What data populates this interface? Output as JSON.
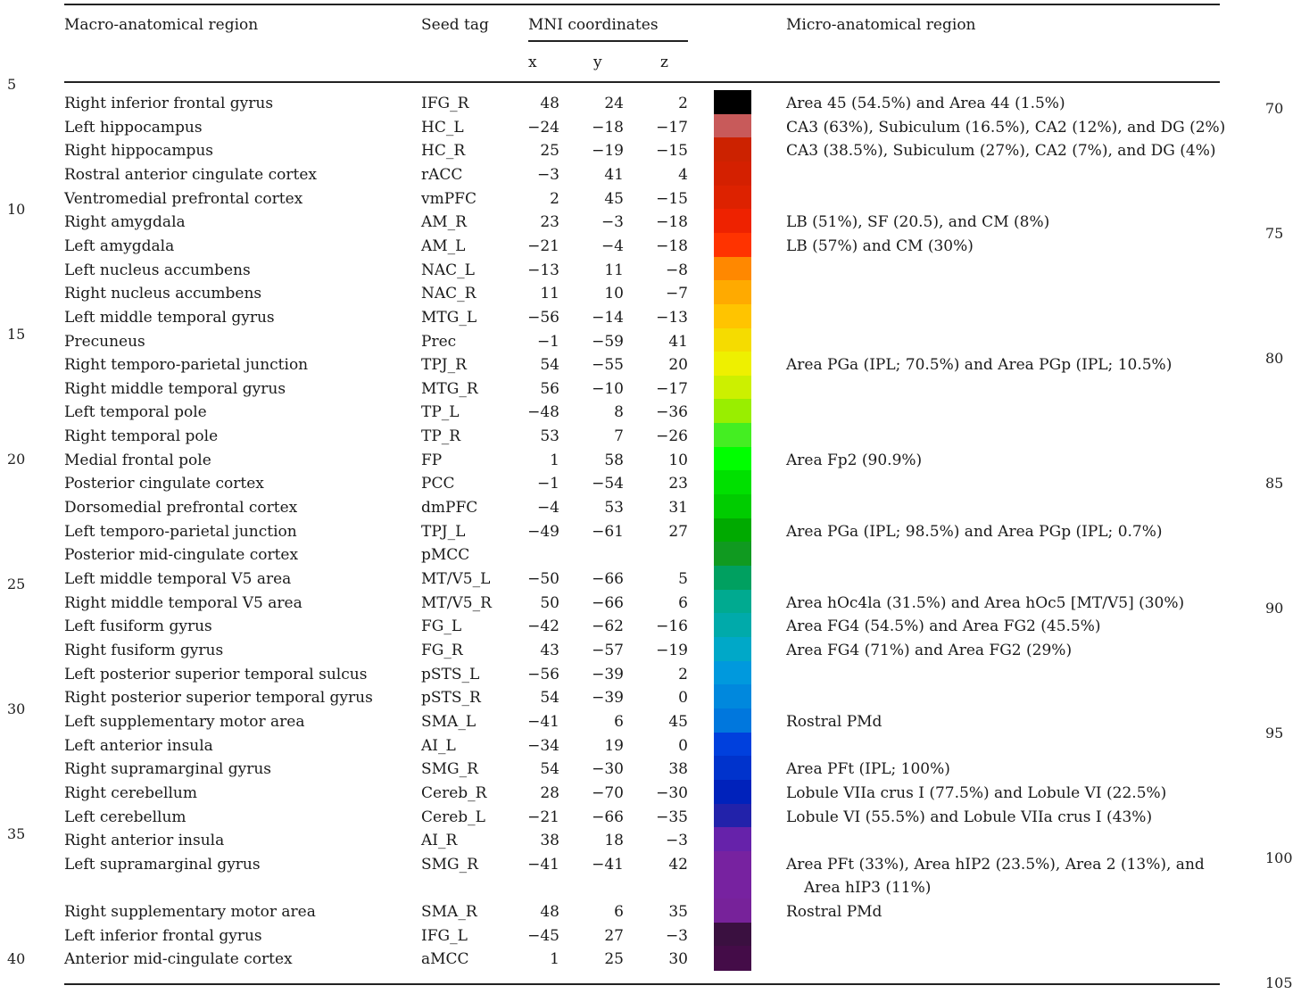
{
  "headers": {
    "macro": "Macro-anatomical region",
    "seed": "Seed tag",
    "mni": "MNI coordinates",
    "x": "x",
    "y": "y",
    "z": "z",
    "micro": "Micro-anatomical region"
  },
  "line_numbers_left": [
    "5",
    "10",
    "15",
    "20",
    "25",
    "30",
    "35",
    "40"
  ],
  "line_numbers_right": [
    "70",
    "75",
    "80",
    "85",
    "90",
    "95",
    "100",
    "105"
  ],
  "rows": [
    {
      "macro": "Right inferior frontal gyrus",
      "seed": "IFG_R",
      "x": "48",
      "y": "24",
      "z": "2",
      "color": "#000000",
      "micro": "Area 45 (54.5%) and Area 44 (1.5%)",
      "micro2": ""
    },
    {
      "macro": "Left hippocampus",
      "seed": "HC_L",
      "x": "−24",
      "y": "−18",
      "z": "−17",
      "color": "#c85a5a",
      "micro": "CA3 (63%), Subiculum (16.5%), CA2 (12%), and DG (2%)",
      "micro2": ""
    },
    {
      "macro": "Right hippocampus",
      "seed": "HC_R",
      "x": "25",
      "y": "−19",
      "z": "−15",
      "color": "#cc2200",
      "micro": "CA3 (38.5%), Subiculum (27%), CA2 (7%), and DG (4%)",
      "micro2": ""
    },
    {
      "macro": "Rostral anterior cingulate cortex",
      "seed": "rACC",
      "x": "−3",
      "y": "41",
      "z": "4",
      "color": "#d42000",
      "micro": "",
      "micro2": ""
    },
    {
      "macro": "Ventromedial prefrontal cortex",
      "seed": "vmPFC",
      "x": "2",
      "y": "45",
      "z": "−15",
      "color": "#dd2200",
      "micro": "",
      "micro2": ""
    },
    {
      "macro": "Right amygdala",
      "seed": "AM_R",
      "x": "23",
      "y": "−3",
      "z": "−18",
      "color": "#ee2200",
      "micro": "LB (51%), SF (20.5), and CM (8%)",
      "micro2": ""
    },
    {
      "macro": "Left amygdala",
      "seed": "AM_L",
      "x": "−21",
      "y": "−4",
      "z": "−18",
      "color": "#ff3300",
      "micro": "LB (57%) and CM (30%)",
      "micro2": ""
    },
    {
      "macro": "Left nucleus accumbens",
      "seed": "NAC_L",
      "x": "−13",
      "y": "11",
      "z": "−8",
      "color": "#ff8800",
      "micro": "",
      "micro2": ""
    },
    {
      "macro": "Right nucleus accumbens",
      "seed": "NAC_R",
      "x": "11",
      "y": "10",
      "z": "−7",
      "color": "#ffaa00",
      "micro": "",
      "micro2": ""
    },
    {
      "macro": "Left middle temporal gyrus",
      "seed": "MTG_L",
      "x": "−56",
      "y": "−14",
      "z": "−13",
      "color": "#ffc400",
      "micro": "",
      "micro2": ""
    },
    {
      "macro": "Precuneus",
      "seed": "Prec",
      "x": "−1",
      "y": "−59",
      "z": "41",
      "color": "#f5dc00",
      "micro": "",
      "micro2": ""
    },
    {
      "macro": "Right temporo-parietal junction",
      "seed": "TPJ_R",
      "x": "54",
      "y": "−55",
      "z": "20",
      "color": "#eef000",
      "micro": "Area PGa (IPL; 70.5%) and Area PGp (IPL; 10.5%)",
      "micro2": ""
    },
    {
      "macro": "Right middle temporal gyrus",
      "seed": "MTG_R",
      "x": "56",
      "y": "−10",
      "z": "−17",
      "color": "#ccf000",
      "micro": "",
      "micro2": ""
    },
    {
      "macro": "Left temporal pole",
      "seed": "TP_L",
      "x": "−48",
      "y": "8",
      "z": "−36",
      "color": "#99ee00",
      "micro": "",
      "micro2": ""
    },
    {
      "macro": "Right temporal pole",
      "seed": "TP_R",
      "x": "53",
      "y": "7",
      "z": "−26",
      "color": "#44ee22",
      "micro": "",
      "micro2": ""
    },
    {
      "macro": "Medial frontal pole",
      "seed": "FP",
      "x": "1",
      "y": "58",
      "z": "10",
      "color": "#00ff00",
      "micro": "Area Fp2 (90.9%)",
      "micro2": ""
    },
    {
      "macro": "Posterior cingulate cortex",
      "seed": "PCC",
      "x": "−1",
      "y": "−54",
      "z": "23",
      "color": "#00e000",
      "micro": "",
      "micro2": ""
    },
    {
      "macro": "Dorsomedial prefrontal cortex",
      "seed": "dmPFC",
      "x": "−4",
      "y": "53",
      "z": "31",
      "color": "#00cc00",
      "micro": "",
      "micro2": ""
    },
    {
      "macro": "Left temporo-parietal junction",
      "seed": "TPJ_L",
      "x": "−49",
      "y": "−61",
      "z": "27",
      "color": "#00aa00",
      "micro": "Area PGa (IPL; 98.5%) and Area PGp (IPL; 0.7%)",
      "micro2": ""
    },
    {
      "macro": "Posterior mid-cingulate cortex",
      "seed": "pMCC",
      "x": "",
      "y": "",
      "z": "",
      "color": "#109a20",
      "micro": "",
      "micro2": ""
    },
    {
      "macro": "Left middle temporal V5 area",
      "seed": "MT/V5_L",
      "x": "−50",
      "y": "−66",
      "z": "5",
      "color": "#00a060",
      "micro": "",
      "micro2": ""
    },
    {
      "macro": "Right middle temporal V5 area",
      "seed": "MT/V5_R",
      "x": "50",
      "y": "−66",
      "z": "6",
      "color": "#00aa90",
      "micro": "Area hOc4la (31.5%) and Area hOc5 [MT/V5] (30%)",
      "micro2": ""
    },
    {
      "macro": "Left fusiform gyrus",
      "seed": "FG_L",
      "x": "−42",
      "y": "−62",
      "z": "−16",
      "color": "#00aaaa",
      "micro": "Area FG4 (54.5%) and Area FG2 (45.5%)",
      "micro2": ""
    },
    {
      "macro": "Right fusiform gyrus",
      "seed": "FG_R",
      "x": "43",
      "y": "−57",
      "z": "−19",
      "color": "#00a8c8",
      "micro": "Area FG4 (71%) and Area FG2 (29%)",
      "micro2": ""
    },
    {
      "macro": "Left posterior superior temporal sulcus",
      "seed": "pSTS_L",
      "x": "−56",
      "y": "−39",
      "z": "2",
      "color": "#0099dd",
      "micro": "",
      "micro2": ""
    },
    {
      "macro": "Right posterior superior temporal gyrus",
      "seed": "pSTS_R",
      "x": "54",
      "y": "−39",
      "z": "0",
      "color": "#0088dd",
      "micro": "",
      "micro2": ""
    },
    {
      "macro": "Left supplementary motor area",
      "seed": "SMA_L",
      "x": "−41",
      "y": "6",
      "z": "45",
      "color": "#0077dd",
      "micro": "Rostral PMd",
      "micro2": ""
    },
    {
      "macro": "Left anterior insula",
      "seed": "AI_L",
      "x": "−34",
      "y": "19",
      "z": "0",
      "color": "#0040dd",
      "micro": "",
      "micro2": ""
    },
    {
      "macro": "Right supramarginal gyrus",
      "seed": "SMG_R",
      "x": "54",
      "y": "−30",
      "z": "38",
      "color": "#0033cc",
      "micro": "Area PFt (IPL; 100%)",
      "micro2": ""
    },
    {
      "macro": "Right cerebellum",
      "seed": "Cereb_R",
      "x": "28",
      "y": "−70",
      "z": "−30",
      "color": "#0022bb",
      "micro": "Lobule VIIa crus I (77.5%) and Lobule VI (22.5%)",
      "micro2": ""
    },
    {
      "macro": "Left cerebellum",
      "seed": "Cereb_L",
      "x": "−21",
      "y": "−66",
      "z": "−35",
      "color": "#2222aa",
      "micro": "Lobule VI (55.5%) and Lobule VIIa crus I (43%)",
      "micro2": ""
    },
    {
      "macro": "Right anterior insula",
      "seed": "AI_R",
      "x": "38",
      "y": "18",
      "z": "−3",
      "color": "#6622aa",
      "micro": "",
      "micro2": ""
    },
    {
      "macro": "Left supramarginal gyrus",
      "seed": "SMG_R",
      "x": "−41",
      "y": "−41",
      "z": "42",
      "color": "#7722a0",
      "micro": "Area PFt (33%), Area hIP2 (23.5%), Area 2 (13%), and",
      "micro2": "Area hIP3 (11%)"
    },
    {
      "macro": "Right supplementary motor area",
      "seed": "SMA_R",
      "x": "48",
      "y": "6",
      "z": "35",
      "color": "#77229a",
      "micro": "Rostral PMd",
      "micro2": ""
    },
    {
      "macro": "Left inferior frontal gyrus",
      "seed": "IFG_L",
      "x": "−45",
      "y": "27",
      "z": "−3",
      "color": "#3a1040",
      "micro": "",
      "micro2": ""
    },
    {
      "macro": "Anterior mid-cingulate cortex",
      "seed": "aMCC",
      "x": "1",
      "y": "25",
      "z": "30",
      "color": "#440c48",
      "micro": "",
      "micro2": ""
    }
  ]
}
